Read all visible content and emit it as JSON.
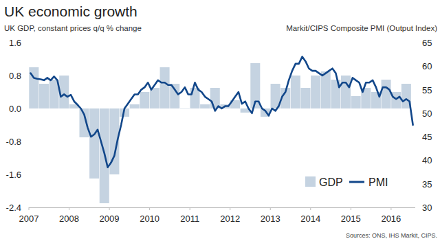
{
  "chart_data": {
    "type": "bar",
    "title": "UK economic growth",
    "ylabel": "UK GDP, constant prices q/q % change",
    "y2label": "Markit/CIPS Composite PMI (Output Index)",
    "source": "Sources: ONS, IHS Markit, CIPS.",
    "xlim": [
      2007,
      2016.6
    ],
    "xticks": [
      2007,
      2008,
      2009,
      2010,
      2011,
      2012,
      2013,
      2014,
      2015,
      2016
    ],
    "ylim": [
      -2.4,
      1.6
    ],
    "yticks": [
      1.6,
      0.8,
      {
        "value": 0,
        "label": "0.0"
      },
      -0.8,
      -1.6,
      -2.4
    ],
    "y2lim": [
      30,
      65
    ],
    "y2ticks": [
      65,
      60,
      55,
      50,
      45,
      40,
      35,
      30
    ],
    "grid": false,
    "legend": "lower right",
    "series": [
      {
        "name": "GDP",
        "type": "bar",
        "color": "#c5d3e1",
        "x": [
          2007.125,
          2007.375,
          2007.625,
          2007.875,
          2008.125,
          2008.375,
          2008.625,
          2008.875,
          2009.125,
          2009.375,
          2009.625,
          2009.875,
          2010.125,
          2010.375,
          2010.625,
          2010.875,
          2011.125,
          2011.375,
          2011.625,
          2011.875,
          2012.125,
          2012.375,
          2012.625,
          2012.875,
          2013.125,
          2013.375,
          2013.625,
          2013.875,
          2014.125,
          2014.375,
          2014.625,
          2014.875,
          2015.125,
          2015.375,
          2015.625,
          2015.875,
          2016.125,
          2016.375
        ],
        "values": [
          1.0,
          0.6,
          0.7,
          0.8,
          0.1,
          -0.7,
          -1.7,
          -2.3,
          -1.6,
          -0.2,
          0.1,
          0.4,
          0.5,
          1.0,
          0.6,
          0.0,
          0.5,
          0.1,
          0.5,
          0.1,
          0.2,
          -0.1,
          1.1,
          -0.2,
          0.6,
          0.5,
          0.8,
          0.5,
          0.8,
          0.9,
          0.7,
          0.8,
          0.3,
          0.5,
          0.4,
          0.7,
          0.4,
          0.6
        ]
      },
      {
        "name": "PMI",
        "type": "line",
        "axis": "y2",
        "color": "#12478a",
        "x": [
          2007.042,
          2007.125,
          2007.208,
          2007.292,
          2007.375,
          2007.458,
          2007.542,
          2007.625,
          2007.708,
          2007.792,
          2007.875,
          2007.958,
          2008.042,
          2008.125,
          2008.208,
          2008.292,
          2008.375,
          2008.458,
          2008.542,
          2008.625,
          2008.708,
          2008.792,
          2008.875,
          2008.958,
          2009.042,
          2009.125,
          2009.208,
          2009.292,
          2009.375,
          2009.458,
          2009.542,
          2009.625,
          2009.708,
          2009.792,
          2009.875,
          2009.958,
          2010.042,
          2010.125,
          2010.208,
          2010.292,
          2010.375,
          2010.458,
          2010.542,
          2010.625,
          2010.708,
          2010.792,
          2010.875,
          2010.958,
          2011.042,
          2011.125,
          2011.208,
          2011.292,
          2011.375,
          2011.458,
          2011.542,
          2011.625,
          2011.708,
          2011.792,
          2011.875,
          2011.958,
          2012.042,
          2012.125,
          2012.208,
          2012.292,
          2012.375,
          2012.458,
          2012.542,
          2012.625,
          2012.708,
          2012.792,
          2012.875,
          2012.958,
          2013.042,
          2013.125,
          2013.208,
          2013.292,
          2013.375,
          2013.458,
          2013.542,
          2013.625,
          2013.708,
          2013.792,
          2013.875,
          2013.958,
          2014.042,
          2014.125,
          2014.208,
          2014.292,
          2014.375,
          2014.458,
          2014.542,
          2014.625,
          2014.708,
          2014.792,
          2014.875,
          2014.958,
          2015.042,
          2015.125,
          2015.208,
          2015.292,
          2015.375,
          2015.458,
          2015.542,
          2015.625,
          2015.708,
          2015.792,
          2015.875,
          2015.958,
          2016.042,
          2016.125,
          2016.208,
          2016.292,
          2016.375,
          2016.458,
          2016.542
        ],
        "values": [
          58.5,
          57.5,
          57.3,
          57.2,
          57.0,
          57.5,
          57.0,
          57.8,
          57.0,
          53.5,
          54.0,
          53.5,
          53.9,
          52.5,
          51.8,
          51.0,
          49.7,
          47.0,
          45.0,
          45.5,
          46.5,
          44.0,
          41.5,
          38.5,
          39.5,
          41.0,
          44.5,
          47.5,
          51.0,
          52.0,
          53.0,
          54.0,
          54.0,
          55.0,
          55.5,
          56.5,
          55.0,
          56.0,
          57.0,
          56.5,
          56.5,
          56.0,
          56.0,
          55.0,
          54.0,
          54.5,
          55.5,
          54.0,
          54.0,
          56.5,
          55.0,
          54.5,
          53.5,
          53.0,
          52.5,
          50.5,
          51.5,
          51.0,
          51.5,
          51.5,
          52.5,
          53.5,
          54.5,
          52.0,
          52.5,
          51.0,
          50.0,
          52.5,
          52.5,
          51.0,
          50.5,
          49.5,
          51.0,
          50.5,
          51.5,
          53.5,
          54.5,
          57.0,
          59.0,
          60.5,
          60.5,
          62.0,
          61.0,
          59.5,
          59.0,
          59.0,
          58.5,
          58.0,
          58.5,
          59.0,
          59.5,
          58.5,
          55.5,
          56.5,
          56.5,
          55.5,
          57.5,
          57.0,
          56.5,
          54.5,
          56.5,
          56.5,
          57.0,
          55.5,
          53.5,
          55.5,
          55.5,
          55.0,
          53.5,
          53.0,
          53.5,
          52.5,
          53.0,
          52.5,
          47.5
        ]
      }
    ]
  }
}
